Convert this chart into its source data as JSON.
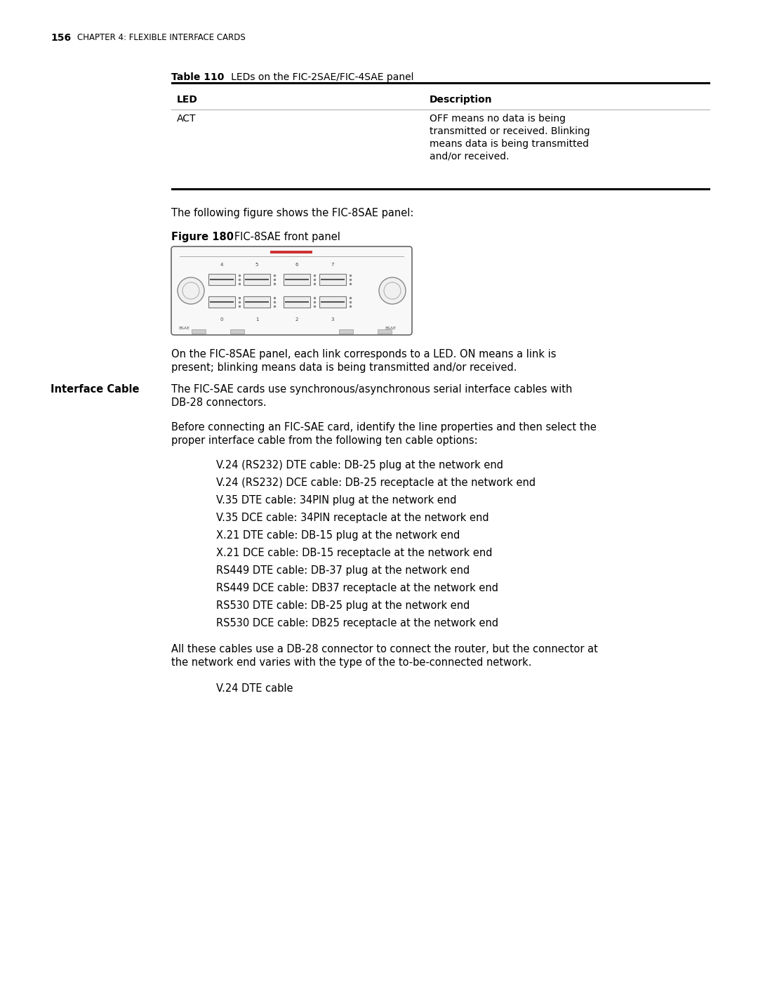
{
  "page_num": "156",
  "chapter_title": "CHAPTER 4: FLEXIBLE INTERFACE CARDS",
  "table_label_bold": "Table 110",
  "table_label_rest": "   LEDs on the FIC-2SAE/FIC-4SAE panel",
  "table_col1": "LED",
  "table_col2": "Description",
  "table_row1_col1": "ACT",
  "table_row1_col2_lines": [
    "OFF means no data is being",
    "transmitted or received. Blinking",
    "means data is being transmitted",
    "and/or received."
  ],
  "fig_label_bold": "Figure 180",
  "fig_caption_rest": "   FIC-8SAE front panel",
  "para1": "The following figure shows the FIC-8SAE panel:",
  "para2_lines": [
    "On the FIC-8SAE panel, each link corresponds to a LED. ON means a link is",
    "present; blinking means data is being transmitted and/or received."
  ],
  "interface_cable_label": "Interface Cable",
  "interface_text1_lines": [
    "The FIC-SAE cards use synchronous/asynchronous serial interface cables with",
    "DB-28 connectors."
  ],
  "interface_text2_lines": [
    "Before connecting an FIC-SAE card, identify the line properties and then select the",
    "proper interface cable from the following ten cable options:"
  ],
  "bullet_items": [
    "V.24 (RS232) DTE cable: DB-25 plug at the network end",
    "V.24 (RS232) DCE cable: DB-25 receptacle at the network end",
    "V.35 DTE cable: 34PIN plug at the network end",
    "V.35 DCE cable: 34PIN receptacle at the network end",
    "X.21 DTE cable: DB-15 plug at the network end",
    "X.21 DCE cable: DB-15 receptacle at the network end",
    "RS449 DTE cable: DB-37 plug at the network end",
    "RS449 DCE cable: DB37 receptacle at the network end",
    "RS530 DTE cable: DB-25 plug at the network end",
    "RS530 DCE cable: DB25 receptacle at the network end"
  ],
  "para3_lines": [
    "All these cables use a DB-28 connector to connect the router, but the connector at",
    "the network end varies with the type of the to-be-connected network."
  ],
  "sub_item": "V.24 DTE cable",
  "bg_color": "#ffffff",
  "text_color": "#000000"
}
